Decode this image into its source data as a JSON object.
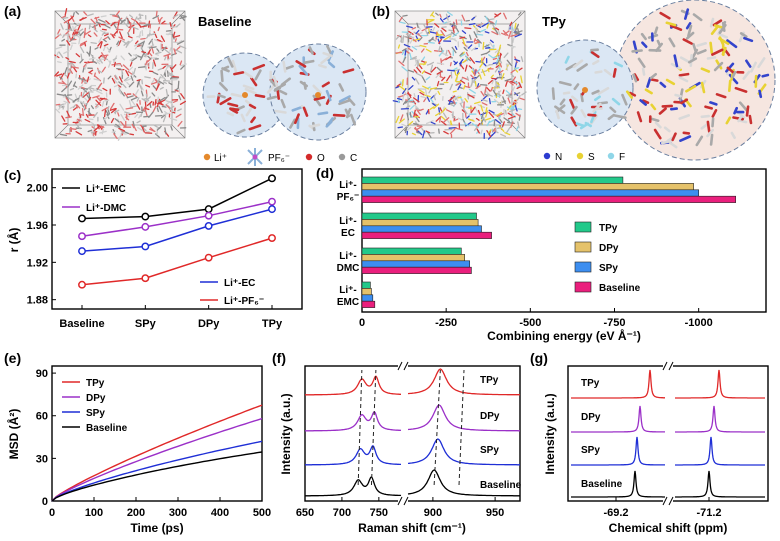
{
  "panels": {
    "a": {
      "letter": "(a)",
      "title": "Baseline",
      "legend": {
        "li": "Li⁺",
        "pf6": "PF₆⁻",
        "o": "O",
        "c": "C"
      }
    },
    "b": {
      "letter": "(b)",
      "title": "TPy",
      "legend": {
        "n": "N",
        "s": "S",
        "f": "F"
      }
    },
    "c": {
      "letter": "(c)"
    },
    "d": {
      "letter": "(d)"
    },
    "e": {
      "letter": "(e)"
    },
    "f": {
      "letter": "(f)"
    },
    "g": {
      "letter": "(g)"
    }
  },
  "colors": {
    "black": "#000000",
    "purple": "#9b30c8",
    "blue": "#1f2fd6",
    "red": "#e02828",
    "teal": "#22c98a",
    "tan": "#e5c26a",
    "sky": "#3d8ef0",
    "pink": "#ea1f7d"
  },
  "chart_data": [
    {
      "id": "c",
      "type": "line",
      "categories": [
        "Baseline",
        "SPy",
        "DPy",
        "TPy"
      ],
      "ylabel": "r (Å)",
      "ylim": [
        1.87,
        2.02
      ],
      "yticks": [
        "1.88",
        "1.92",
        "1.96",
        "2.00"
      ],
      "series": [
        {
          "name": "Li⁺-EMC",
          "color": "#000000",
          "values": [
            1.967,
            1.969,
            1.977,
            2.01
          ]
        },
        {
          "name": "Li⁺-DMC",
          "color": "#9b30c8",
          "values": [
            1.948,
            1.958,
            1.97,
            1.985
          ]
        },
        {
          "name": "Li⁺-EC",
          "color": "#1f2fd6",
          "values": [
            1.932,
            1.937,
            1.959,
            1.977
          ]
        },
        {
          "name": "Li⁺-PF₆⁻",
          "color": "#e02828",
          "values": [
            1.896,
            1.903,
            1.925,
            1.946
          ]
        }
      ]
    },
    {
      "id": "d",
      "type": "bar",
      "orientation": "horizontal",
      "xlabel": "Combining energy (eV Å⁻¹)",
      "xlim": [
        0,
        -1200
      ],
      "xticks": [
        "0",
        "-250",
        "-500",
        "-750",
        "-1000"
      ],
      "groups": [
        {
          "label_top": "Li⁺-",
          "label_bottom": "PF₆⁻"
        },
        {
          "label_top": "Li⁺-",
          "label_bottom": "EC"
        },
        {
          "label_top": "Li⁺-",
          "label_bottom": "DMC"
        },
        {
          "label_top": "Li⁺-",
          "label_bottom": "EMC"
        }
      ],
      "series": [
        {
          "name": "TPy",
          "color": "#22c98a",
          "values": [
            -775,
            -340,
            -295,
            -25
          ]
        },
        {
          "name": "DPy",
          "color": "#e5c26a",
          "values": [
            -985,
            -345,
            -305,
            -28
          ]
        },
        {
          "name": "SPy",
          "color": "#3d8ef0",
          "values": [
            -1000,
            -355,
            -320,
            -32
          ]
        },
        {
          "name": "Baseline",
          "color": "#ea1f7d",
          "values": [
            -1110,
            -385,
            -325,
            -38
          ]
        }
      ]
    },
    {
      "id": "e",
      "type": "line",
      "xlabel": "Time (ps)",
      "ylabel": "MSD (Å²)",
      "xlim": [
        0,
        500
      ],
      "ylim": [
        0,
        95
      ],
      "xticks": [
        "0",
        "100",
        "200",
        "300",
        "400",
        "500"
      ],
      "yticks": [
        "0",
        "30",
        "60",
        "90"
      ],
      "series": [
        {
          "name": "TPy",
          "color": "#e02828",
          "slope": 0.135
        },
        {
          "name": "DPy",
          "color": "#9b30c8",
          "slope": 0.116
        },
        {
          "name": "SPy",
          "color": "#1f2fd6",
          "slope": 0.084
        },
        {
          "name": "Baseline",
          "color": "#000000",
          "slope": 0.069
        }
      ]
    },
    {
      "id": "f",
      "type": "line",
      "xlabel": "Raman shift (cm⁻¹)",
      "ylabel": "Intensity (a.u.)",
      "xticks": [
        "650",
        "700",
        "750",
        "900",
        "950"
      ],
      "series": [
        {
          "name": "TPy",
          "color": "#e02828",
          "peaks": [
            727,
            746,
            906
          ]
        },
        {
          "name": "DPy",
          "color": "#9b30c8",
          "peaks": [
            727,
            744,
            905
          ]
        },
        {
          "name": "SPy",
          "color": "#1f2fd6",
          "peaks": [
            725,
            742,
            904
          ]
        },
        {
          "name": "Baseline",
          "color": "#000000",
          "peaks": [
            722,
            740,
            901
          ]
        }
      ]
    },
    {
      "id": "g",
      "type": "line",
      "xlabel": "Chemical shift (ppm)",
      "ylabel": "Intensity (a.u.)",
      "xticks": [
        "-69.2",
        "-71.2"
      ],
      "series": [
        {
          "name": "TPy",
          "color": "#e02828"
        },
        {
          "name": "DPy",
          "color": "#9b30c8"
        },
        {
          "name": "SPy",
          "color": "#1f2fd6"
        },
        {
          "name": "Baseline",
          "color": "#000000"
        }
      ]
    }
  ]
}
